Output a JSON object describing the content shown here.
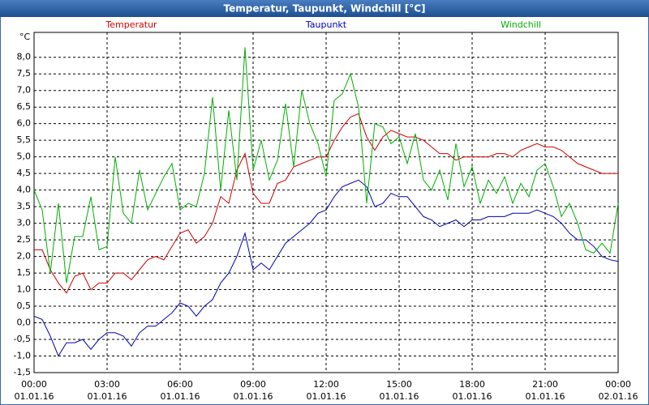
{
  "chart_data": {
    "type": "line",
    "title": "Temperatur, Taupunkt, Windchill [°C]",
    "y_label": "°C",
    "x": [
      0,
      20,
      40,
      60,
      80,
      100,
      120,
      140,
      160,
      180,
      200,
      220,
      240,
      260,
      280,
      300,
      320,
      340,
      360,
      380,
      400,
      420,
      440,
      460,
      480,
      500,
      520,
      540,
      560,
      580,
      600,
      620,
      640,
      660,
      680,
      700,
      720,
      740,
      760,
      780,
      800,
      820,
      840,
      860,
      880,
      900,
      920,
      940,
      960,
      980,
      1000,
      1020,
      1040,
      1060,
      1080,
      1100,
      1120,
      1140,
      1160,
      1180,
      1200,
      1220,
      1240,
      1260,
      1280,
      1300,
      1320,
      1340,
      1360,
      1380,
      1400,
      1420,
      1440
    ],
    "xlim": [
      0,
      1440
    ],
    "xticks": [
      {
        "value": 0,
        "label": "00:00"
      },
      {
        "value": 180,
        "label": "03:00"
      },
      {
        "value": 360,
        "label": "06:00"
      },
      {
        "value": 540,
        "label": "09:00"
      },
      {
        "value": 720,
        "label": "12:00"
      },
      {
        "value": 900,
        "label": "15:00"
      },
      {
        "value": 1080,
        "label": "18:00"
      },
      {
        "value": 1260,
        "label": "21:00"
      },
      {
        "value": 1440,
        "label": "00:00"
      }
    ],
    "xtick_dates": [
      "01.01.16",
      "01.01.16",
      "01.01.16",
      "01.01.16",
      "01.01.16",
      "01.01.16",
      "01.01.16",
      "01.01.16",
      "02.01.16"
    ],
    "ylim": [
      -1.5,
      8.75
    ],
    "yticks": [
      {
        "value": -1.5,
        "label": "-1,5"
      },
      {
        "value": -1,
        "label": "-1,0"
      },
      {
        "value": -0.5,
        "label": "-0,5"
      },
      {
        "value": 0,
        "label": "0,0"
      },
      {
        "value": 0.5,
        "label": "0,5"
      },
      {
        "value": 1,
        "label": "1,0"
      },
      {
        "value": 1.5,
        "label": "1,5"
      },
      {
        "value": 2,
        "label": "2,0"
      },
      {
        "value": 2.5,
        "label": "2,5"
      },
      {
        "value": 3,
        "label": "3,0"
      },
      {
        "value": 3.5,
        "label": "3,5"
      },
      {
        "value": 4,
        "label": "4,0"
      },
      {
        "value": 4.5,
        "label": "4,5"
      },
      {
        "value": 5,
        "label": "5,0"
      },
      {
        "value": 5.5,
        "label": "5,5"
      },
      {
        "value": 6,
        "label": "6,0"
      },
      {
        "value": 6.5,
        "label": "6,5"
      },
      {
        "value": 7,
        "label": "7,0"
      },
      {
        "value": 7.5,
        "label": "7,5"
      },
      {
        "value": 8,
        "label": "8,0"
      }
    ],
    "grid": true,
    "series": [
      {
        "name": "Temperatur",
        "color": "#d00000",
        "values": [
          2.2,
          2.2,
          1.6,
          1.2,
          0.9,
          1.4,
          1.5,
          1.0,
          1.2,
          1.2,
          1.5,
          1.5,
          1.3,
          1.6,
          1.9,
          2.0,
          1.9,
          2.3,
          2.7,
          2.8,
          2.4,
          2.6,
          3.0,
          3.8,
          3.6,
          4.6,
          5.1,
          3.9,
          3.6,
          3.6,
          4.2,
          4.3,
          4.7,
          4.8,
          4.9,
          5.0,
          5.0,
          5.5,
          5.9,
          6.2,
          6.3,
          5.6,
          5.2,
          5.6,
          5.8,
          5.7,
          5.6,
          5.6,
          5.5,
          5.3,
          5.1,
          5.1,
          4.9,
          5.0,
          5.0,
          5.0,
          5.0,
          5.1,
          5.1,
          5.0,
          5.2,
          5.3,
          5.4,
          5.3,
          5.3,
          5.2,
          5.0,
          4.8,
          4.7,
          4.6,
          4.5,
          4.5,
          4.5
        ]
      },
      {
        "name": "Taupunkt",
        "color": "#0000b0",
        "values": [
          0.2,
          0.1,
          -0.4,
          -1.0,
          -0.6,
          -0.6,
          -0.5,
          -0.8,
          -0.5,
          -0.3,
          -0.3,
          -0.4,
          -0.7,
          -0.3,
          -0.1,
          -0.1,
          0.1,
          0.3,
          0.6,
          0.5,
          0.2,
          0.5,
          0.7,
          1.2,
          1.5,
          2.0,
          2.7,
          1.6,
          1.8,
          1.6,
          2.0,
          2.4,
          2.6,
          2.8,
          3.0,
          3.3,
          3.4,
          3.8,
          4.1,
          4.2,
          4.3,
          4.1,
          3.5,
          3.6,
          3.9,
          3.8,
          3.8,
          3.5,
          3.2,
          3.1,
          2.9,
          3.0,
          3.1,
          2.9,
          3.1,
          3.1,
          3.2,
          3.2,
          3.2,
          3.3,
          3.3,
          3.3,
          3.4,
          3.3,
          3.2,
          3.0,
          2.7,
          2.5,
          2.5,
          2.3,
          2.0,
          1.9,
          1.85
        ]
      },
      {
        "name": "Windchill",
        "color": "#00b000",
        "values": [
          4.0,
          3.4,
          1.5,
          3.6,
          1.2,
          2.6,
          2.6,
          3.8,
          2.2,
          2.3,
          5.0,
          3.3,
          3.0,
          4.6,
          3.4,
          3.9,
          4.4,
          4.8,
          3.4,
          3.6,
          3.5,
          4.5,
          6.8,
          4.0,
          6.4,
          4.3,
          8.3,
          4.6,
          5.5,
          4.3,
          4.9,
          6.6,
          4.7,
          7.0,
          6.0,
          5.4,
          4.4,
          6.7,
          6.9,
          7.5,
          6.5,
          3.6,
          6.0,
          5.9,
          5.4,
          5.6,
          4.8,
          5.7,
          4.3,
          4.0,
          4.6,
          3.7,
          5.4,
          4.1,
          4.7,
          3.6,
          4.3,
          3.9,
          4.4,
          3.6,
          4.2,
          3.8,
          4.6,
          4.8,
          4.1,
          3.2,
          3.6,
          3.0,
          2.2,
          2.1,
          2.4,
          2.1,
          3.6
        ]
      }
    ]
  }
}
